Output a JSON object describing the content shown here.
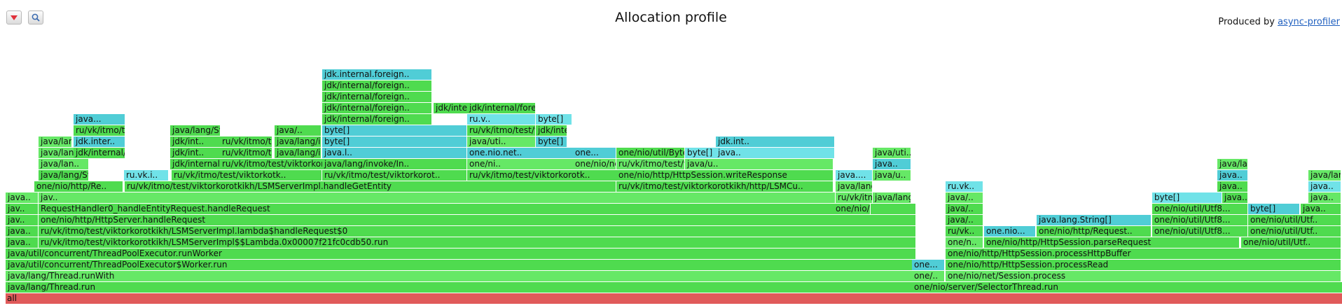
{
  "header": {
    "title": "Allocation profile",
    "produced_by": "Produced by ",
    "produced_link": "async-profiler",
    "collapse_icon": "chevron-down-icon",
    "search_icon": "search-icon"
  },
  "colors": {
    "green": "#4fdb4f",
    "light_green": "#66e866",
    "cyan": "#50cdd6",
    "light_cyan": "#70e2e8",
    "root": "#e05a5a"
  },
  "frames": [
    {
      "text": "all",
      "c": "root"
    },
    {
      "text": "java/lang/Thread.run",
      "c": "g"
    },
    {
      "text": "one/nio/server/SelectorThread.run",
      "c": "g"
    },
    {
      "text": "java/lang/Thread.runWith",
      "c": "lg"
    },
    {
      "text": "one/..",
      "c": "lg"
    },
    {
      "text": "one/nio/net/Session.process",
      "c": "lg"
    },
    {
      "text": "java/util/concurrent/ThreadPoolExecutor$Worker.run",
      "c": "g"
    },
    {
      "text": "one...",
      "c": "cy"
    },
    {
      "text": "one/nio/http/HttpSession.processRead",
      "c": "g"
    },
    {
      "text": "java/util/concurrent/ThreadPoolExecutor.runWorker",
      "c": "g"
    },
    {
      "text": "one/nio/http/HttpSession.processHttpBuffer",
      "c": "g"
    },
    {
      "text": "java..",
      "c": "g"
    },
    {
      "text": "ru/vk/itmo/test/viktorkorotkikh/LSMServerImpl$$Lambda.0x00007f21fc0cdb50.run",
      "c": "g"
    },
    {
      "text": "one/n..",
      "c": "lg"
    },
    {
      "text": "one/nio/http/HttpSession.parseRequest",
      "c": "g"
    },
    {
      "text": "one/nio/util/Utf..",
      "c": "g"
    },
    {
      "text": "java..",
      "c": "g"
    },
    {
      "text": "ru/vk/itmo/test/viktorkorotkikh/LSMServerImpl.lambda$handleRequest$0",
      "c": "g"
    },
    {
      "text": "ru/vk..",
      "c": "g"
    },
    {
      "text": "one.nio...",
      "c": "cy"
    },
    {
      "text": "one/nio/http/Request..",
      "c": "g"
    },
    {
      "text": "one/nio/util/Utf8...",
      "c": "g"
    },
    {
      "text": "one/nio/util/Utf..",
      "c": "g"
    },
    {
      "text": "jav..",
      "c": "g"
    },
    {
      "text": "one/nio/http/HttpServer.handleRequest",
      "c": "g"
    },
    {
      "text": "java/..",
      "c": "g"
    },
    {
      "text": "java.lang.String[]",
      "c": "cy"
    },
    {
      "text": "one/nio/util/Utf8...",
      "c": "g"
    },
    {
      "text": "one/nio/util/Utf..",
      "c": "g"
    },
    {
      "text": "jav..",
      "c": "g"
    },
    {
      "text": "RequestHandler0_handleEntityRequest.handleRequest",
      "c": "g"
    },
    {
      "text": "one/nio/http/..",
      "c": "g"
    },
    {
      "text": "java/..",
      "c": "g"
    },
    {
      "text": "one/nio/util/Utf8...",
      "c": "g"
    },
    {
      "text": "byte[]",
      "c": "cy"
    },
    {
      "text": "java..",
      "c": "g"
    },
    {
      "text": "java..",
      "c": "lg"
    },
    {
      "text": "jav..",
      "c": "lg"
    },
    {
      "text": "ru/vk/itmo/test/viktorkorotkikh/LSMServerImpl.handleEntityRequest",
      "c": "lg"
    },
    {
      "text": "java/lang/Str..",
      "c": "lg"
    },
    {
      "text": "java/..",
      "c": "lg"
    },
    {
      "text": "byte[]",
      "c": "lcy"
    },
    {
      "text": "java..",
      "c": "g"
    },
    {
      "text": "java..",
      "c": "lg"
    },
    {
      "text": "one/nio/http/Re..",
      "c": "g"
    },
    {
      "text": "ru/vk/itmo/test/viktorkorotkikh/LSMServerImpl.handleGetEntity",
      "c": "g"
    },
    {
      "text": "ru/vk/itmo/test/viktorkorotkikh/http/LSMCu..",
      "c": "g"
    },
    {
      "text": "java/lang/Str..",
      "c": "lg"
    },
    {
      "text": "ru.vk..",
      "c": "lcy"
    },
    {
      "text": "java..",
      "c": "g"
    },
    {
      "text": "java..",
      "c": "lcy"
    },
    {
      "text": "java/lang/Strin..",
      "c": "g"
    },
    {
      "text": "ru.vk.i..",
      "c": "lcy"
    },
    {
      "text": "ru/vk/itmo/test/viktorkotk..",
      "c": "g"
    },
    {
      "text": "ru/vk/itmo/test/viktorkorot..",
      "c": "g"
    },
    {
      "text": "ru/vk/itmo/test/viktorkorotk..",
      "c": "g"
    },
    {
      "text": "one/nio/http/HttpSession.writeResponse",
      "c": "g"
    },
    {
      "text": "java....",
      "c": "lcy"
    },
    {
      "text": "java/u..",
      "c": "lg"
    },
    {
      "text": "java..",
      "c": "cy"
    },
    {
      "text": "java/lang/Strin..",
      "c": "lg"
    },
    {
      "text": "java/lan..",
      "c": "lg"
    },
    {
      "text": "jdk/internal/foreign/..",
      "c": "g"
    },
    {
      "text": "ru/vk/itmo/test/viktorkorot..",
      "c": "g"
    },
    {
      "text": "java/lang/invoke/In..",
      "c": "g"
    },
    {
      "text": "one/ni..",
      "c": "lg"
    },
    {
      "text": "one/nio/net..",
      "c": "lg"
    },
    {
      "text": "ru/vk/itmo/test/viktorkorotkikh..",
      "c": "lg"
    },
    {
      "text": "java/u..",
      "c": "lg"
    },
    {
      "text": "java..",
      "c": "cy"
    },
    {
      "text": "java/lang/Strin..",
      "c": "lg"
    },
    {
      "text": "java/lan..",
      "c": "lg"
    },
    {
      "text": "jdk/internal/forei..",
      "c": "g"
    },
    {
      "text": "jdk/int..",
      "c": "g"
    },
    {
      "text": "ru/vk/itmo/test/viktorkorot..",
      "c": "g"
    },
    {
      "text": "java/lang/invoke/La..",
      "c": "g"
    },
    {
      "text": "java.l..",
      "c": "cy"
    },
    {
      "text": "one.nio.net..",
      "c": "cy"
    },
    {
      "text": "one...",
      "c": "cy"
    },
    {
      "text": "one/nio/util/ByteArray..",
      "c": "g"
    },
    {
      "text": "byte[]",
      "c": "lcy"
    },
    {
      "text": "java..",
      "c": "lcy"
    },
    {
      "text": "java/uti..",
      "c": "lg"
    },
    {
      "text": "java/lan..",
      "c": "lg"
    },
    {
      "text": "jdk.inter..",
      "c": "cy"
    },
    {
      "text": "jdk/int..",
      "c": "g"
    },
    {
      "text": "ru/vk/itmo/test/viktorkorot..",
      "c": "g"
    },
    {
      "text": "java/lang/invoke/Di..",
      "c": "g"
    },
    {
      "text": "byte[]",
      "c": "cy"
    },
    {
      "text": "java/uti..",
      "c": "lg"
    },
    {
      "text": "byte[]",
      "c": "cy"
    },
    {
      "text": "jdk.int..",
      "c": "cy"
    },
    {
      "text": "ru/vk/itmo/test/viktorkorot..",
      "c": "g"
    },
    {
      "text": "java/lang/St..",
      "c": "g"
    },
    {
      "text": "java/..",
      "c": "g"
    },
    {
      "text": "byte[]",
      "c": "cy"
    },
    {
      "text": "ru/vk/itmo/test/viktorkorot..",
      "c": "g"
    },
    {
      "text": "jdk/internal..",
      "c": "g"
    },
    {
      "text": "java...",
      "c": "cy"
    },
    {
      "text": "jdk/internal/foreign..",
      "c": "g"
    },
    {
      "text": "ru.v..",
      "c": "lcy"
    },
    {
      "text": "byte[]",
      "c": "lcy"
    },
    {
      "text": "jdk/internal/foreign..",
      "c": "g"
    },
    {
      "text": "jdk/internal/foreign..",
      "c": "g"
    },
    {
      "text": "jdk/internal/foreign..",
      "c": "g"
    },
    {
      "text": "jdk/internal/foreign..",
      "c": "g"
    },
    {
      "text": "jdk/internal/foreign..",
      "c": "g"
    },
    {
      "text": "jdk.internal.foreign..",
      "c": "cy"
    }
  ]
}
